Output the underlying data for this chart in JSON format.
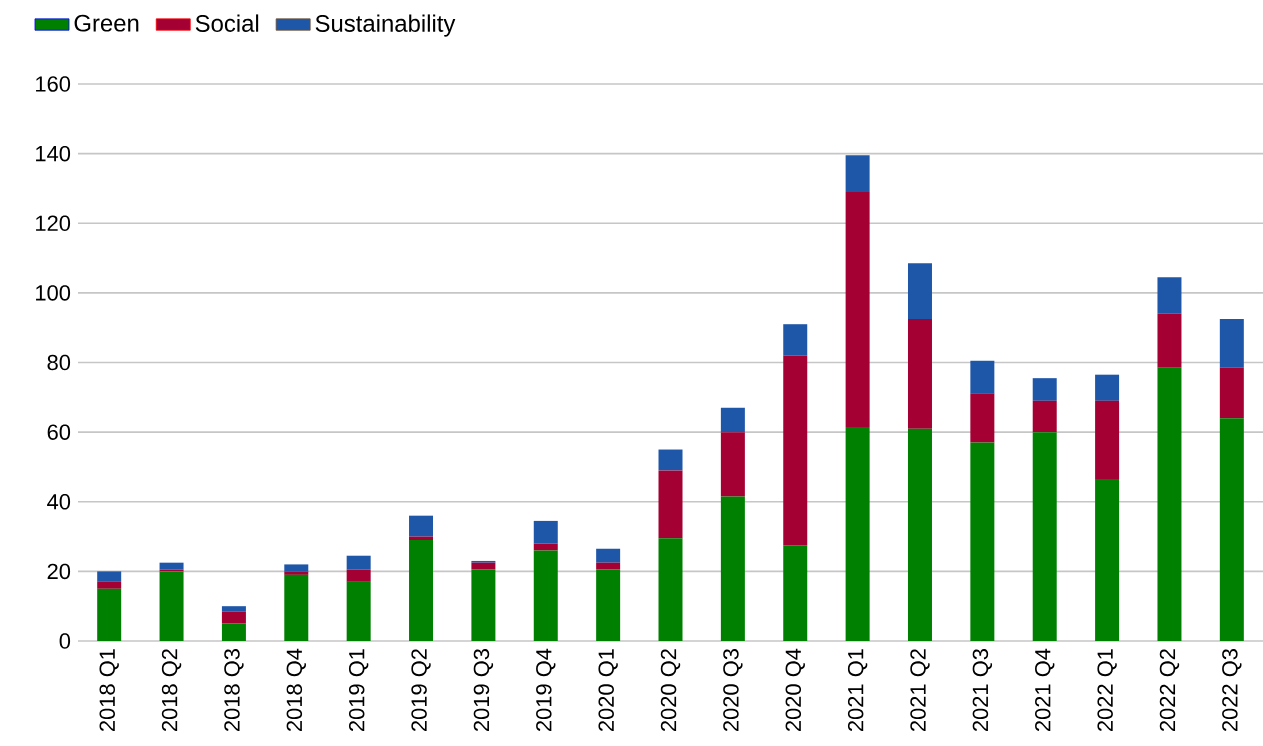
{
  "chart_data": {
    "type": "bar",
    "stacked": true,
    "categories": [
      "2018 Q1",
      "2018 Q2",
      "2018 Q3",
      "2018 Q4",
      "2019 Q1",
      "2019 Q2",
      "2019 Q3",
      "2019 Q4",
      "2020 Q1",
      "2020 Q2",
      "2020 Q3",
      "2020 Q4",
      "2021 Q1",
      "2021 Q2",
      "2021 Q3",
      "2021 Q4",
      "2022 Q1",
      "2022 Q2",
      "2022 Q3"
    ],
    "series": [
      {
        "name": "Green",
        "color": "#008000",
        "values": [
          15,
          20,
          5,
          19,
          17,
          29,
          20.5,
          26,
          20.5,
          29.5,
          41.5,
          27.5,
          61.5,
          61,
          57,
          60,
          46.5,
          78.5,
          64
        ]
      },
      {
        "name": "Social",
        "color": "#a50034",
        "values": [
          2,
          0.5,
          3.5,
          1,
          3.5,
          1,
          2,
          2,
          2,
          19.5,
          18.5,
          54.5,
          67.5,
          31.5,
          14,
          9,
          22.5,
          15.5,
          14.5
        ]
      },
      {
        "name": "Sustainability",
        "color": "#1f57a8",
        "values": [
          3,
          2,
          1.5,
          2,
          4,
          6,
          0.5,
          6.5,
          4,
          6,
          7,
          9,
          10.5,
          16,
          9.5,
          6.5,
          7.5,
          10.5,
          14
        ]
      }
    ],
    "ylim": [
      0,
      160
    ],
    "yticks": [
      0,
      20,
      40,
      60,
      80,
      100,
      120,
      140,
      160
    ],
    "grid": "y",
    "legend": "top left"
  }
}
